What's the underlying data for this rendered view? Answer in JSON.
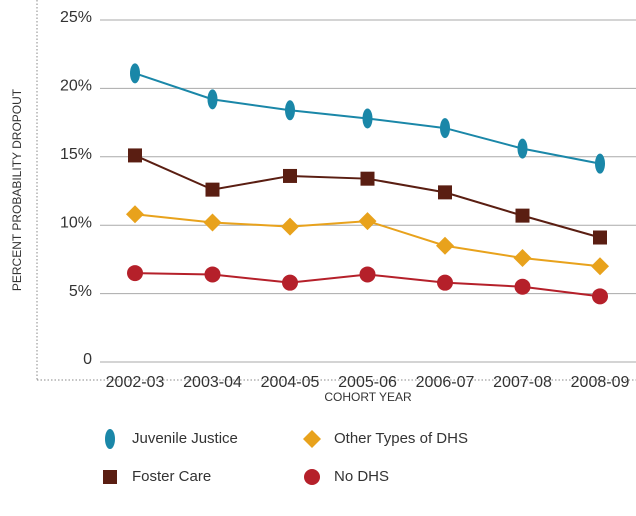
{
  "chart_data": {
    "type": "line",
    "y_label": "PERCENT PROBABILITY DROPOUT",
    "x_label": "COHORT YEAR",
    "categories": [
      "2002-03",
      "2003-04",
      "2004-05",
      "2005-06",
      "2006-07",
      "2007-08",
      "2008-09"
    ],
    "series": [
      {
        "name": "Juvenile Justice",
        "color": "#1a87a8",
        "marker": "ellipse",
        "values": [
          21.1,
          19.2,
          18.4,
          17.8,
          17.1,
          15.6,
          14.5
        ]
      },
      {
        "name": "Foster Care",
        "color": "#5a1e12",
        "marker": "square",
        "values": [
          15.1,
          12.6,
          13.6,
          13.4,
          12.4,
          10.7,
          9.1
        ]
      },
      {
        "name": "Other Types of DHS",
        "color": "#e8a21c",
        "marker": "diamond",
        "values": [
          10.8,
          10.2,
          9.9,
          10.3,
          8.5,
          7.6,
          7.0
        ]
      },
      {
        "name": "No DHS",
        "color": "#b5202a",
        "marker": "circle",
        "values": [
          6.5,
          6.4,
          5.8,
          6.4,
          5.8,
          5.5,
          4.8
        ]
      }
    ],
    "ylim": [
      0,
      25
    ],
    "yticks": [
      0,
      {
        "value": 5,
        "label": "5%"
      },
      {
        "value": 10,
        "label": "10%"
      },
      {
        "value": 15,
        "label": "15%"
      },
      {
        "value": 20,
        "label": "20%"
      },
      {
        "value": 25,
        "label": "25%"
      }
    ],
    "grid": true
  }
}
